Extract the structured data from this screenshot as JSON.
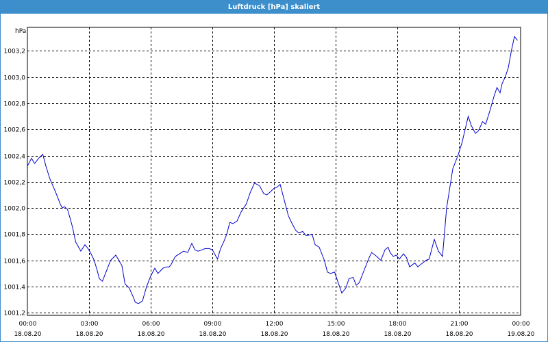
{
  "window": {
    "title": "Luftdruck [hPa] skaliert"
  },
  "colors": {
    "titlebar": "#3d8fcc",
    "line": "#0000cc",
    "grid": "#000000"
  },
  "chart_data": {
    "type": "line",
    "title": "Luftdruck [hPa] skaliert",
    "ylabel": "hPa",
    "xlabel": "",
    "ylim": [
      1001.18,
      1003.38
    ],
    "xlim": [
      0,
      24
    ],
    "grid": true,
    "legend": "none",
    "y_ticks": [
      {
        "value": 1001.2,
        "label": "1001,2"
      },
      {
        "value": 1001.4,
        "label": "1001,4"
      },
      {
        "value": 1001.6,
        "label": "1001,6"
      },
      {
        "value": 1001.8,
        "label": "1001,8"
      },
      {
        "value": 1002.0,
        "label": "1002,0"
      },
      {
        "value": 1002.2,
        "label": "1002,2"
      },
      {
        "value": 1002.4,
        "label": "1002,4"
      },
      {
        "value": 1002.6,
        "label": "1002,6"
      },
      {
        "value": 1002.8,
        "label": "1002,8"
      },
      {
        "value": 1003.0,
        "label": "1003,0"
      },
      {
        "value": 1003.2,
        "label": "1003,2"
      }
    ],
    "x_ticks": [
      {
        "value": 0,
        "time": "00:00",
        "date": "18.08.20"
      },
      {
        "value": 3,
        "time": "03:00",
        "date": "18.08.20"
      },
      {
        "value": 6,
        "time": "06:00",
        "date": "18.08.20"
      },
      {
        "value": 9,
        "time": "09:00",
        "date": "18.08.20"
      },
      {
        "value": 12,
        "time": "12:00",
        "date": "18.08.20"
      },
      {
        "value": 15,
        "time": "15:00",
        "date": "18.08.20"
      },
      {
        "value": 18,
        "time": "18:00",
        "date": "18.08.20"
      },
      {
        "value": 21,
        "time": "21:00",
        "date": "18.08.20"
      },
      {
        "value": 24,
        "time": "00:00",
        "date": "19.08.20"
      }
    ],
    "series": [
      {
        "x": [
          0,
          0.2,
          0.35,
          0.55,
          0.75,
          0.9,
          1.1,
          1.35,
          1.6,
          1.7,
          1.8,
          1.95,
          2.1,
          2.2,
          2.35,
          2.6,
          2.8,
          2.95,
          3.1,
          3.25,
          3.4,
          3.5,
          3.65,
          3.9,
          4.05,
          4.3,
          4.45,
          4.6,
          4.75,
          4.95,
          5.15,
          5.25,
          5.4,
          5.6,
          5.8,
          6.0,
          6.2,
          6.35,
          6.6,
          6.75,
          6.9,
          7.0,
          7.2,
          7.4,
          7.6,
          7.8,
          8.0,
          8.15,
          8.3,
          8.5,
          8.65,
          8.85,
          9.0,
          9.25,
          9.4,
          9.55,
          9.7,
          9.85,
          10.0,
          10.2,
          10.4,
          10.65,
          10.85,
          11.05,
          11.3,
          11.5,
          11.65,
          11.8,
          12.0,
          12.15,
          12.3,
          12.5,
          12.7,
          12.85,
          13.05,
          13.2,
          13.4,
          13.55,
          13.65,
          13.85,
          14.0,
          14.2,
          14.45,
          14.6,
          14.75,
          14.95,
          15.1,
          15.3,
          15.5,
          15.65,
          15.85,
          16.0,
          16.15,
          16.4,
          16.6,
          16.75,
          17.0,
          17.2,
          17.4,
          17.55,
          17.65,
          17.8,
          17.95,
          18.1,
          18.3,
          18.45,
          18.6,
          18.85,
          19.0,
          19.15,
          19.4,
          19.55,
          19.8,
          20.0,
          20.2,
          20.4,
          20.55,
          20.7,
          20.95,
          21.05,
          21.15,
          21.3,
          21.45,
          21.6,
          21.8,
          21.95,
          22.15,
          22.3,
          22.5,
          22.7,
          22.85,
          23.0,
          23.1,
          23.25,
          23.4,
          23.55,
          23.7,
          23.85
        ],
        "y": [
          1002.32,
          1002.38,
          1002.34,
          1002.38,
          1002.41,
          1002.32,
          1002.22,
          1002.13,
          1002.03,
          1002.0,
          1002.01,
          1001.99,
          1001.91,
          1001.85,
          1001.74,
          1001.67,
          1001.72,
          1001.69,
          1001.65,
          1001.6,
          1001.52,
          1001.46,
          1001.44,
          1001.54,
          1001.6,
          1001.64,
          1001.6,
          1001.56,
          1001.42,
          1001.39,
          1001.32,
          1001.28,
          1001.27,
          1001.29,
          1001.4,
          1001.48,
          1001.54,
          1001.5,
          1001.54,
          1001.55,
          1001.55,
          1001.57,
          1001.63,
          1001.65,
          1001.67,
          1001.66,
          1001.73,
          1001.68,
          1001.67,
          1001.68,
          1001.69,
          1001.69,
          1001.68,
          1001.61,
          1001.69,
          1001.74,
          1001.8,
          1001.89,
          1001.88,
          1001.9,
          1001.97,
          1002.03,
          1002.12,
          1002.19,
          1002.17,
          1002.11,
          1002.1,
          1002.12,
          1002.15,
          1002.16,
          1002.18,
          1002.06,
          1001.94,
          1001.89,
          1001.83,
          1001.81,
          1001.82,
          1001.79,
          1001.79,
          1001.8,
          1001.72,
          1001.7,
          1001.6,
          1001.51,
          1001.5,
          1001.51,
          1001.44,
          1001.35,
          1001.39,
          1001.46,
          1001.47,
          1001.41,
          1001.43,
          1001.53,
          1001.61,
          1001.66,
          1001.63,
          1001.6,
          1001.68,
          1001.7,
          1001.66,
          1001.63,
          1001.64,
          1001.61,
          1001.65,
          1001.62,
          1001.55,
          1001.58,
          1001.55,
          1001.57,
          1001.6,
          1001.61,
          1001.76,
          1001.67,
          1001.63,
          1002.0,
          1002.15,
          1002.3,
          1002.4,
          1002.45,
          1002.5,
          1002.6,
          1002.7,
          1002.63,
          1002.57,
          1002.59,
          1002.66,
          1002.64,
          1002.74,
          1002.85,
          1002.92,
          1002.88,
          1002.95,
          1003.0,
          1003.07,
          1003.2,
          1003.31,
          1003.28
        ]
      }
    ]
  }
}
